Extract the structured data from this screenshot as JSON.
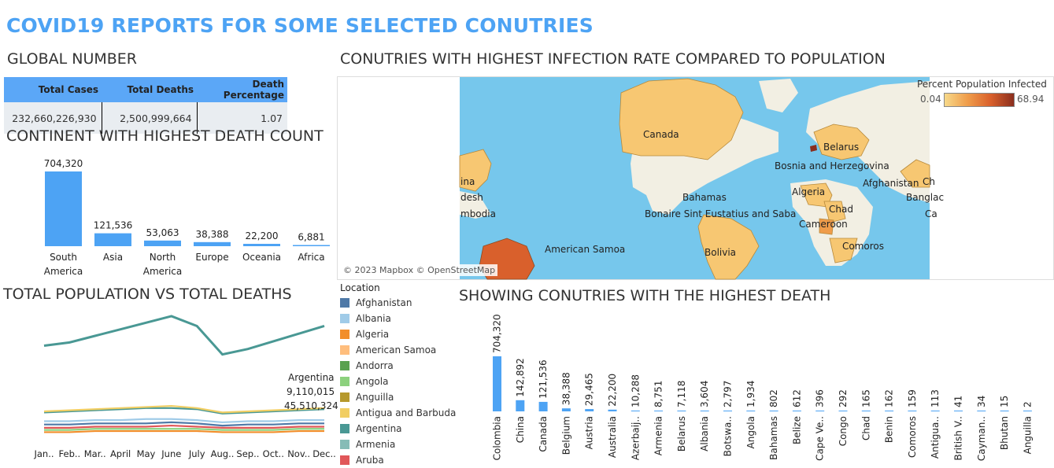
{
  "page_title": "COVID19 REPORTS FOR SOME SELECTED CONUTRIES",
  "global": {
    "section_title": "GLOBAL NUMBER",
    "headers": [
      "Total Cases",
      "Total Deaths",
      "Death Percentage"
    ],
    "values": [
      "232,660,226,930",
      "2,500,999,664",
      "1.07"
    ]
  },
  "map": {
    "section_title": "CONUTRIES WITH HIGHEST INFECTION RATE COMPARED TO POPULATION",
    "legend_title": "Percent Population Infected",
    "legend_min": "0.04",
    "legend_max": "68.94",
    "attribution": "© 2023 Mapbox © OpenStreetMap",
    "labels": [
      "Canada",
      "Belarus",
      "Bosnia and Herzegovina",
      "Afghanistan",
      "Ch",
      "Banglac",
      "Ca",
      "ina",
      "desh",
      "mbodia",
      "Algeria",
      "Bahamas",
      "Bonaire Sint Eustatius and Saba",
      "Chad",
      "Cameroon",
      "Comoros",
      "Bolivia",
      "American Samoa"
    ],
    "colors": {
      "ocean": "#76c7ec",
      "land": "#f2efe3",
      "low": "#f7c772",
      "mid": "#ef9c4a",
      "high": "#d9602c",
      "max": "#8a2e1e"
    }
  },
  "continent": {
    "section_title": "CONTINENT WITH HIGHEST DEATH COUNT",
    "chart_data": {
      "type": "bar",
      "categories": [
        "South America",
        "Asia",
        "North America",
        "Europe",
        "Oceania",
        "Africa"
      ],
      "values": [
        704320,
        121536,
        53063,
        38388,
        22200,
        6881
      ],
      "value_labels": [
        "704,320",
        "121,536",
        "53,063",
        "38,388",
        "22,200",
        "6,881"
      ],
      "color": "#4da3f4"
    }
  },
  "population": {
    "section_title": "TOTAL POPULATION VS TOTAL DEATHS",
    "legend_title": "Location",
    "legend_items": [
      {
        "name": "Afghanistan",
        "color": "#4e79a7"
      },
      {
        "name": "Albania",
        "color": "#a0cbe8"
      },
      {
        "name": "Algeria",
        "color": "#f28e2b"
      },
      {
        "name": "American Samoa",
        "color": "#ffbe7d"
      },
      {
        "name": "Andorra",
        "color": "#59a14f"
      },
      {
        "name": "Angola",
        "color": "#8cd17d"
      },
      {
        "name": "Anguilla",
        "color": "#b6992d"
      },
      {
        "name": "Antigua and Barbuda",
        "color": "#f1ce63"
      },
      {
        "name": "Argentina",
        "color": "#499894"
      },
      {
        "name": "Armenia",
        "color": "#86bcb6"
      },
      {
        "name": "Aruba",
        "color": "#e15759"
      }
    ],
    "annotation": [
      "Argentina",
      "9,110,015",
      "45,510,324"
    ],
    "chart_data": {
      "type": "line",
      "categories": [
        "Jan..",
        "Feb..",
        "Mar..",
        "April",
        "May",
        "June",
        "July",
        "Aug..",
        "Sep..",
        "Oct..",
        "Nov..",
        "Dec.."
      ],
      "series": [
        {
          "name": "Argentina",
          "values": [
            83,
            86,
            92,
            98,
            104,
            110,
            101,
            75,
            80,
            87,
            94,
            101
          ],
          "color": "#499894"
        },
        {
          "name": "Antigua and Barbuda",
          "values": [
            23,
            24,
            25,
            26,
            27,
            28,
            26,
            22,
            23,
            24,
            25,
            26
          ],
          "color": "#f1ce63"
        },
        {
          "name": "Argentina",
          "values": [
            22,
            23,
            24,
            25,
            26,
            26,
            25,
            21,
            22,
            23,
            24,
            25
          ],
          "color": "#499894"
        },
        {
          "name": "Albania",
          "values": [
            14,
            14,
            15,
            15,
            16,
            16,
            15,
            13,
            14,
            14,
            15,
            15
          ],
          "color": "#a0cbe8"
        },
        {
          "name": "Afghanistan",
          "values": [
            11,
            11,
            12,
            12,
            12,
            13,
            12,
            10,
            11,
            11,
            12,
            12
          ],
          "color": "#4e79a7"
        },
        {
          "name": "Aruba",
          "values": [
            8,
            8,
            9,
            9,
            9,
            10,
            9,
            8,
            8,
            8,
            9,
            9
          ],
          "color": "#e15759"
        },
        {
          "name": "Angola",
          "values": [
            6,
            6,
            7,
            7,
            7,
            7,
            7,
            6,
            6,
            6,
            7,
            7
          ],
          "color": "#8cd17d"
        },
        {
          "name": "Algeria",
          "values": [
            4,
            4,
            5,
            5,
            5,
            5,
            5,
            4,
            4,
            4,
            5,
            5
          ],
          "color": "#f28e2b"
        }
      ]
    }
  },
  "countries": {
    "section_title": "SHOWING CONUTRIES  WITH THE HIGHEST DEATH",
    "chart_data": {
      "type": "bar",
      "categories": [
        "Colombia",
        "China",
        "Canada",
        "Belgium",
        "Austria",
        "Australia",
        "Azerbaij..",
        "Armenia",
        "Belarus",
        "Albania",
        "Botswa..",
        "Angola",
        "Bahamas",
        "Belize",
        "Cape Ve..",
        "Congo",
        "Chad",
        "Benin",
        "Comoros",
        "Antigua..",
        "British V..",
        "Cayman..",
        "Bhutan",
        "Anguilla"
      ],
      "values": [
        704320,
        142892,
        121536,
        38388,
        29465,
        22200,
        10288,
        8751,
        7118,
        3604,
        2797,
        1934,
        802,
        612,
        396,
        292,
        165,
        162,
        159,
        113,
        41,
        34,
        15,
        2
      ],
      "value_labels": [
        "704,320",
        "142,892",
        "121,536",
        "38,388",
        "29,465",
        "22,200",
        "10,288",
        "8,751",
        "7,118",
        "3,604",
        "2,797",
        "1,934",
        "802",
        "612",
        "396",
        "292",
        "165",
        "162",
        "159",
        "113",
        "41",
        "34",
        "15",
        "2"
      ],
      "color": "#4da3f4"
    }
  }
}
